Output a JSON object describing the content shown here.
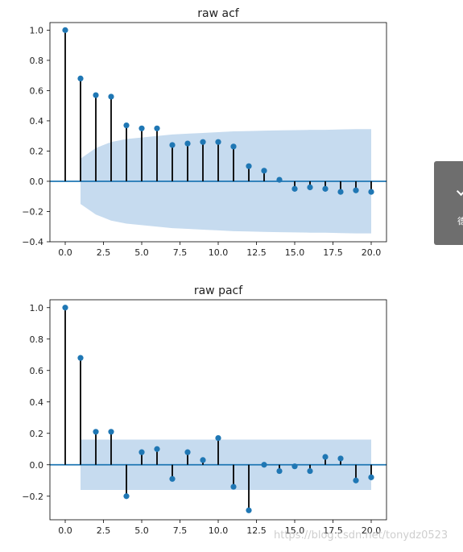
{
  "chart_data": [
    {
      "type": "stem",
      "title": "raw acf",
      "xlim": [
        -1,
        21
      ],
      "ylim": [
        -0.4,
        1.05
      ],
      "x_ticks": [
        "0.0",
        "2.5",
        "5.0",
        "7.5",
        "10.0",
        "12.5",
        "15.0",
        "17.5",
        "20.0"
      ],
      "y_ticks": [
        "1.0",
        "0.8",
        "0.6",
        "0.4",
        "0.2",
        "0.0",
        "−0.2",
        "−0.4"
      ],
      "lags": [
        0,
        1,
        2,
        3,
        4,
        5,
        6,
        7,
        8,
        9,
        10,
        11,
        12,
        13,
        14,
        15,
        16,
        17,
        18,
        19,
        20
      ],
      "values": [
        1.0,
        0.68,
        0.57,
        0.56,
        0.37,
        0.35,
        0.35,
        0.24,
        0.25,
        0.26,
        0.26,
        0.23,
        0.1,
        0.07,
        0.01,
        -0.05,
        -0.04,
        -0.05,
        -0.07,
        -0.06,
        -0.07
      ],
      "confidence_band": {
        "lags": [
          1,
          2,
          3,
          4,
          5,
          6,
          7,
          8,
          9,
          10,
          11,
          12,
          13,
          14,
          15,
          16,
          17,
          18,
          19,
          20
        ],
        "upper": [
          0.15,
          0.22,
          0.26,
          0.28,
          0.29,
          0.3,
          0.31,
          0.315,
          0.32,
          0.325,
          0.33,
          0.332,
          0.335,
          0.337,
          0.338,
          0.34,
          0.34,
          0.343,
          0.345,
          0.345
        ]
      },
      "colors": {
        "marker": "#1f77b4",
        "stem": "#000000",
        "band": "#c6dbef",
        "baseline": "#1f77b4"
      }
    },
    {
      "type": "stem",
      "title": "raw pacf",
      "xlim": [
        -1,
        21
      ],
      "ylim": [
        -0.35,
        1.05
      ],
      "x_ticks": [
        "0.0",
        "2.5",
        "5.0",
        "7.5",
        "10.0",
        "12.5",
        "15.0",
        "17.5",
        "20.0"
      ],
      "y_ticks": [
        "1.0",
        "0.8",
        "0.6",
        "0.4",
        "0.2",
        "0.0",
        "−0.2"
      ],
      "lags": [
        0,
        1,
        2,
        3,
        4,
        5,
        6,
        7,
        8,
        9,
        10,
        11,
        12,
        13,
        14,
        15,
        16,
        17,
        18,
        19,
        20
      ],
      "values": [
        1.0,
        0.68,
        0.21,
        0.21,
        -0.2,
        0.08,
        0.1,
        -0.09,
        0.08,
        0.03,
        0.17,
        -0.14,
        -0.29,
        0.0,
        -0.04,
        -0.01,
        -0.04,
        0.05,
        0.04,
        -0.1,
        -0.08
      ],
      "confidence_band": {
        "lags": [
          1,
          20
        ],
        "upper": [
          0.16,
          0.16
        ]
      },
      "colors": {
        "marker": "#1f77b4",
        "stem": "#000000",
        "band": "#c6dbef",
        "baseline": "#1f77b4"
      }
    }
  ],
  "watermark": "https://blog.csdn.net/tonydz0523",
  "side_widget": {
    "icon": "check-icon",
    "glyph": "德"
  }
}
